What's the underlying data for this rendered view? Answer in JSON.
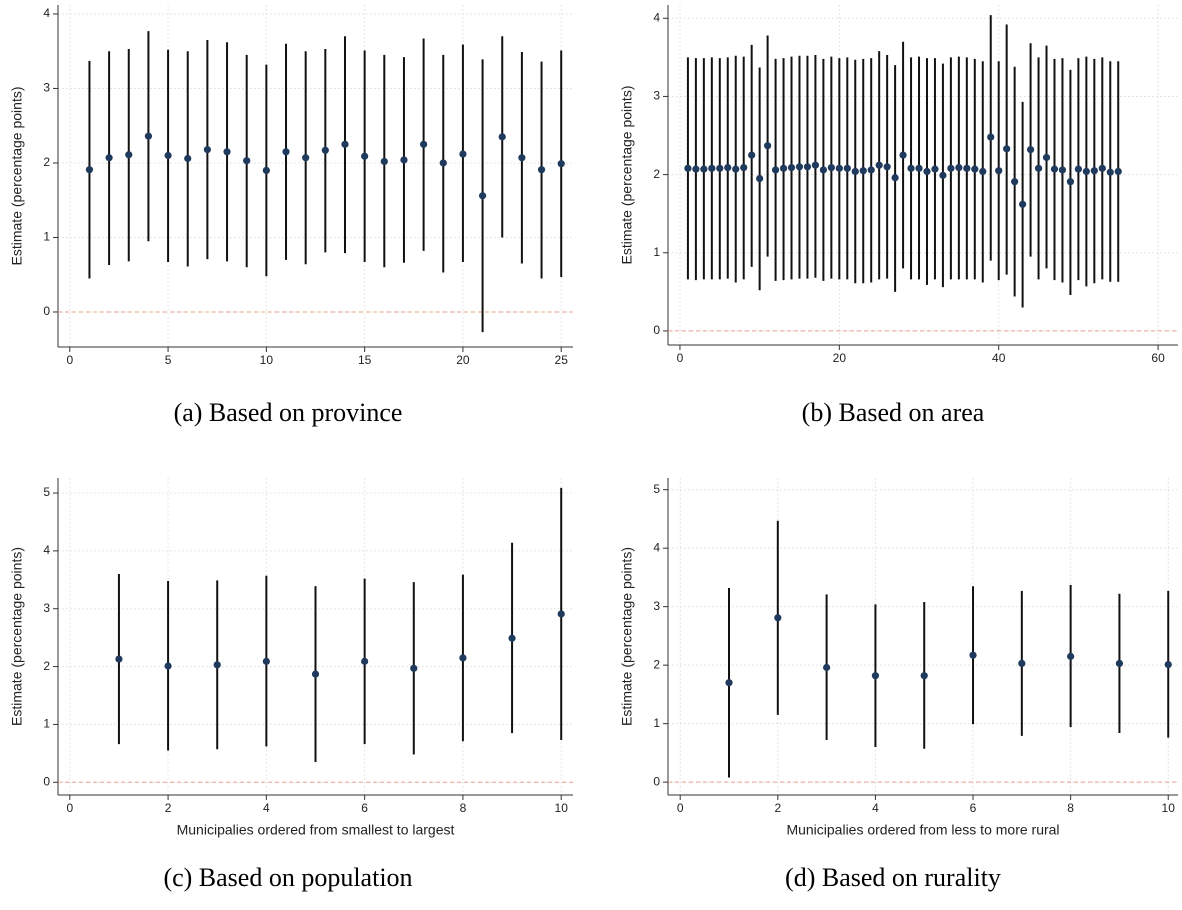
{
  "chart_data": [
    {
      "type": "errorbar",
      "caption": "(a) Based on province",
      "ylabel": "Estimate (percentage points)",
      "x": [
        1,
        2,
        3,
        4,
        5,
        6,
        7,
        8,
        9,
        10,
        11,
        12,
        13,
        14,
        15,
        16,
        17,
        18,
        19,
        20,
        21,
        22,
        23,
        24,
        25
      ],
      "values": [
        1.91,
        2.07,
        2.11,
        2.36,
        2.1,
        2.06,
        2.18,
        2.15,
        2.03,
        1.9,
        2.15,
        2.07,
        2.17,
        2.25,
        2.09,
        2.02,
        2.04,
        2.25,
        2.0,
        2.12,
        1.56,
        2.35,
        2.07,
        1.91,
        1.99
      ],
      "lower": [
        0.45,
        0.63,
        0.68,
        0.95,
        0.67,
        0.61,
        0.71,
        0.68,
        0.6,
        0.48,
        0.7,
        0.64,
        0.8,
        0.79,
        0.67,
        0.6,
        0.66,
        0.82,
        0.53,
        0.67,
        -0.27,
        1.0,
        0.65,
        0.45,
        0.47
      ],
      "upper": [
        3.37,
        3.5,
        3.53,
        3.77,
        3.52,
        3.5,
        3.65,
        3.62,
        3.45,
        3.32,
        3.6,
        3.5,
        3.53,
        3.7,
        3.51,
        3.45,
        3.42,
        3.67,
        3.45,
        3.59,
        3.39,
        3.7,
        3.49,
        3.36,
        3.51
      ],
      "xlim": [
        -0.6,
        25.6
      ],
      "ylim": [
        -0.47,
        4.12
      ],
      "xticks": [
        0,
        5,
        10,
        15,
        20,
        25
      ],
      "yticks": [
        0,
        1,
        2,
        3,
        4
      ],
      "grid": true,
      "color": "#1f3a5c",
      "bar_color": "#111111",
      "reference_y": 0,
      "reference_color": "#f0a090"
    },
    {
      "type": "errorbar",
      "caption": "(b) Based on area",
      "ylabel": "Estimate (percentage points)",
      "x": [
        1,
        2,
        3,
        4,
        5,
        6,
        7,
        8,
        9,
        10,
        11,
        12,
        13,
        14,
        15,
        16,
        17,
        18,
        19,
        20,
        21,
        22,
        23,
        24,
        25,
        26,
        27,
        28,
        29,
        30,
        31,
        32,
        33,
        34,
        35,
        36,
        37,
        38,
        39,
        40,
        41,
        42,
        43,
        44,
        45,
        46,
        47,
        48,
        49,
        50,
        51,
        52,
        53,
        54,
        55
      ],
      "values": [
        2.08,
        2.07,
        2.07,
        2.08,
        2.08,
        2.09,
        2.07,
        2.09,
        2.25,
        1.95,
        2.37,
        2.06,
        2.08,
        2.09,
        2.1,
        2.1,
        2.12,
        2.06,
        2.09,
        2.08,
        2.08,
        2.04,
        2.05,
        2.06,
        2.12,
        2.1,
        1.96,
        2.25,
        2.08,
        2.08,
        2.04,
        2.07,
        1.99,
        2.08,
        2.09,
        2.08,
        2.07,
        2.04,
        2.48,
        2.05,
        2.33,
        1.91,
        1.62,
        2.32,
        2.08,
        2.22,
        2.07,
        2.06,
        1.91,
        2.07,
        2.04,
        2.05,
        2.08,
        2.03,
        2.04
      ],
      "lower": [
        0.66,
        0.65,
        0.66,
        0.66,
        0.66,
        0.67,
        0.62,
        0.66,
        0.82,
        0.52,
        0.95,
        0.64,
        0.65,
        0.66,
        0.67,
        0.67,
        0.68,
        0.64,
        0.67,
        0.66,
        0.66,
        0.61,
        0.61,
        0.62,
        0.66,
        0.67,
        0.5,
        0.8,
        0.66,
        0.66,
        0.59,
        0.66,
        0.56,
        0.66,
        0.66,
        0.66,
        0.66,
        0.62,
        0.9,
        0.65,
        0.72,
        0.44,
        0.3,
        0.95,
        0.66,
        0.8,
        0.65,
        0.62,
        0.46,
        0.65,
        0.57,
        0.61,
        0.66,
        0.63,
        0.63
      ],
      "upper": [
        3.5,
        3.49,
        3.49,
        3.5,
        3.49,
        3.5,
        3.52,
        3.51,
        3.66,
        3.37,
        3.78,
        3.48,
        3.49,
        3.51,
        3.52,
        3.52,
        3.53,
        3.48,
        3.51,
        3.49,
        3.5,
        3.47,
        3.48,
        3.49,
        3.58,
        3.53,
        3.4,
        3.7,
        3.5,
        3.51,
        3.49,
        3.49,
        3.42,
        3.5,
        3.51,
        3.5,
        3.48,
        3.45,
        4.04,
        3.45,
        3.92,
        3.38,
        2.93,
        3.68,
        3.5,
        3.65,
        3.48,
        3.49,
        3.34,
        3.49,
        3.51,
        3.48,
        3.5,
        3.45,
        3.45
      ],
      "xlim": [
        -1.5,
        62.5
      ],
      "ylim": [
        -0.18,
        4.17
      ],
      "xticks": [
        0,
        20,
        40,
        60
      ],
      "yticks": [
        0,
        1,
        2,
        3,
        4
      ],
      "grid": true,
      "color": "#1f3a5c",
      "bar_color": "#111111",
      "reference_y": 0,
      "reference_color": "#f0a090"
    },
    {
      "type": "errorbar",
      "caption": "(c) Based on population",
      "ylabel": "Estimate (percentage points)",
      "xlabel": "Municipalies ordered from smallest to largest",
      "x": [
        1,
        2,
        3,
        4,
        5,
        6,
        7,
        8,
        9,
        10
      ],
      "values": [
        2.13,
        2.01,
        2.03,
        2.09,
        1.87,
        2.09,
        1.97,
        2.15,
        2.49,
        2.91
      ],
      "lower": [
        0.66,
        0.55,
        0.57,
        0.62,
        0.35,
        0.66,
        0.48,
        0.71,
        0.85,
        0.73
      ],
      "upper": [
        3.6,
        3.48,
        3.49,
        3.57,
        3.39,
        3.52,
        3.46,
        3.59,
        4.14,
        5.09
      ],
      "xlim": [
        -0.24,
        10.24
      ],
      "ylim": [
        -0.22,
        5.26
      ],
      "xticks": [
        0,
        2,
        4,
        6,
        8,
        10
      ],
      "yticks": [
        0,
        1,
        2,
        3,
        4,
        5
      ],
      "grid": true,
      "color": "#1f3a5c",
      "bar_color": "#111111",
      "reference_y": 0,
      "reference_color": "#f0a090"
    },
    {
      "type": "errorbar",
      "caption": "(d) Based on rurality",
      "ylabel": "Estimate (percentage points)",
      "xlabel": "Municipalies ordered from less to more rural",
      "x": [
        1,
        2,
        3,
        4,
        5,
        6,
        7,
        8,
        9,
        10
      ],
      "values": [
        1.7,
        2.81,
        1.96,
        1.82,
        1.82,
        2.17,
        2.03,
        2.15,
        2.03,
        2.01
      ],
      "lower": [
        0.08,
        1.15,
        0.72,
        0.6,
        0.57,
        0.99,
        0.79,
        0.94,
        0.84,
        0.76
      ],
      "upper": [
        3.32,
        4.47,
        3.21,
        3.04,
        3.08,
        3.35,
        3.27,
        3.37,
        3.22,
        3.27
      ],
      "xlim": [
        -0.25,
        10.2
      ],
      "ylim": [
        -0.22,
        5.2
      ],
      "xticks": [
        0,
        2,
        4,
        6,
        8,
        10
      ],
      "yticks": [
        0,
        1,
        2,
        3,
        4,
        5
      ],
      "grid": true,
      "color": "#1f3a5c",
      "bar_color": "#111111",
      "reference_y": 0,
      "reference_color": "#f0a090"
    }
  ]
}
